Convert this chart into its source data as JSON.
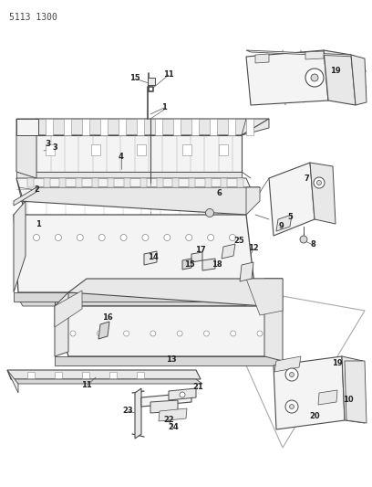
{
  "title": "5113 1300",
  "bg_color": "#ffffff",
  "lc": "#4a4a4a",
  "lc_thin": "#777777",
  "fc_main": "#f4f4f4",
  "fc_mid": "#e8e8e8",
  "fc_dark": "#d8d8d8",
  "label_fs": 6.0,
  "title_fs": 7.0,
  "fig_w": 4.08,
  "fig_h": 5.33,
  "dpi": 100
}
